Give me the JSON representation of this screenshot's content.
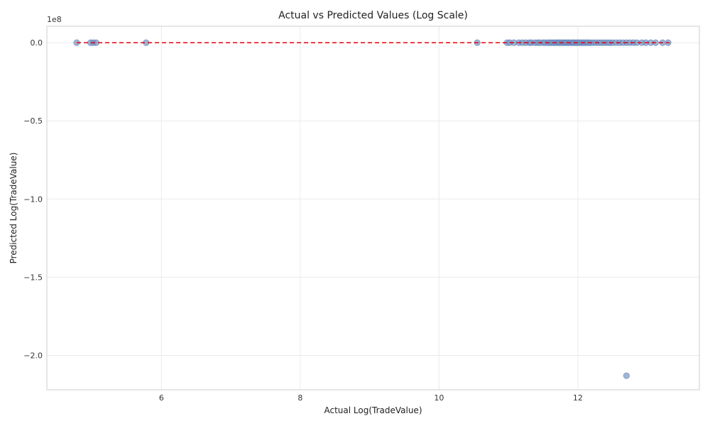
{
  "chart_data": {
    "type": "scatter",
    "title": "Actual vs Predicted Values (Log Scale)",
    "xlabel": "Actual Log(TradeValue)",
    "ylabel": "Predicted Log(TradeValue)",
    "y_offset_label": "1e8",
    "y_scale_factor": 100000000,
    "xlim": [
      4.35,
      13.75
    ],
    "ylim": [
      -2.22,
      0.105
    ],
    "xticks": [
      6,
      8,
      10,
      12
    ],
    "xtick_labels": [
      "6",
      "8",
      "10",
      "12"
    ],
    "yticks": [
      0.0,
      -0.5,
      -1.0,
      -1.5,
      -2.0
    ],
    "ytick_labels": [
      "0.0",
      "−0.5",
      "−1.0",
      "−1.5",
      "−2.0"
    ],
    "grid": true,
    "marker_color": "#7896c4",
    "reference_line_color": "#e8000b",
    "reference_line": {
      "x": [
        4.78,
        13.32
      ],
      "y": [
        0.0,
        0.0
      ],
      "style": "dashed"
    },
    "points": {
      "x": [
        4.78,
        4.98,
        5.02,
        5.06,
        5.78,
        10.55,
        10.98,
        11.02,
        11.08,
        11.15,
        11.2,
        11.25,
        11.3,
        11.33,
        11.38,
        11.42,
        11.45,
        11.5,
        11.53,
        11.57,
        11.6,
        11.63,
        11.66,
        11.69,
        11.72,
        11.74,
        11.77,
        11.8,
        11.82,
        11.85,
        11.87,
        11.9,
        11.93,
        11.95,
        11.98,
        12.0,
        12.03,
        12.06,
        12.09,
        12.12,
        12.15,
        12.18,
        12.22,
        12.26,
        12.3,
        12.34,
        12.38,
        12.42,
        12.46,
        12.5,
        12.55,
        12.6,
        12.65,
        12.7,
        12.75,
        12.8,
        12.85,
        12.92,
        12.98,
        13.05,
        13.12,
        13.22,
        13.3,
        12.7
      ],
      "y": [
        0.0,
        0.0,
        0.0,
        0.0,
        0.0,
        0.0,
        0.0,
        0.0,
        0.0,
        0.0,
        0.0,
        0.0,
        0.0,
        0.0,
        0.0,
        0.0,
        0.0,
        0.0,
        0.0,
        0.0,
        0.0,
        0.0,
        0.0,
        0.0,
        0.0,
        0.0,
        0.0,
        0.0,
        0.0,
        0.0,
        0.0,
        0.0,
        0.0,
        0.0,
        0.0,
        0.0,
        0.0,
        0.0,
        0.0,
        0.0,
        0.0,
        0.0,
        0.0,
        0.0,
        0.0,
        0.0,
        0.0,
        0.0,
        0.0,
        0.0,
        0.0,
        0.0,
        0.0,
        0.0,
        0.0,
        0.0,
        0.0,
        0.0,
        0.0,
        0.0,
        0.0,
        0.0,
        0.0,
        -2.13
      ]
    }
  }
}
